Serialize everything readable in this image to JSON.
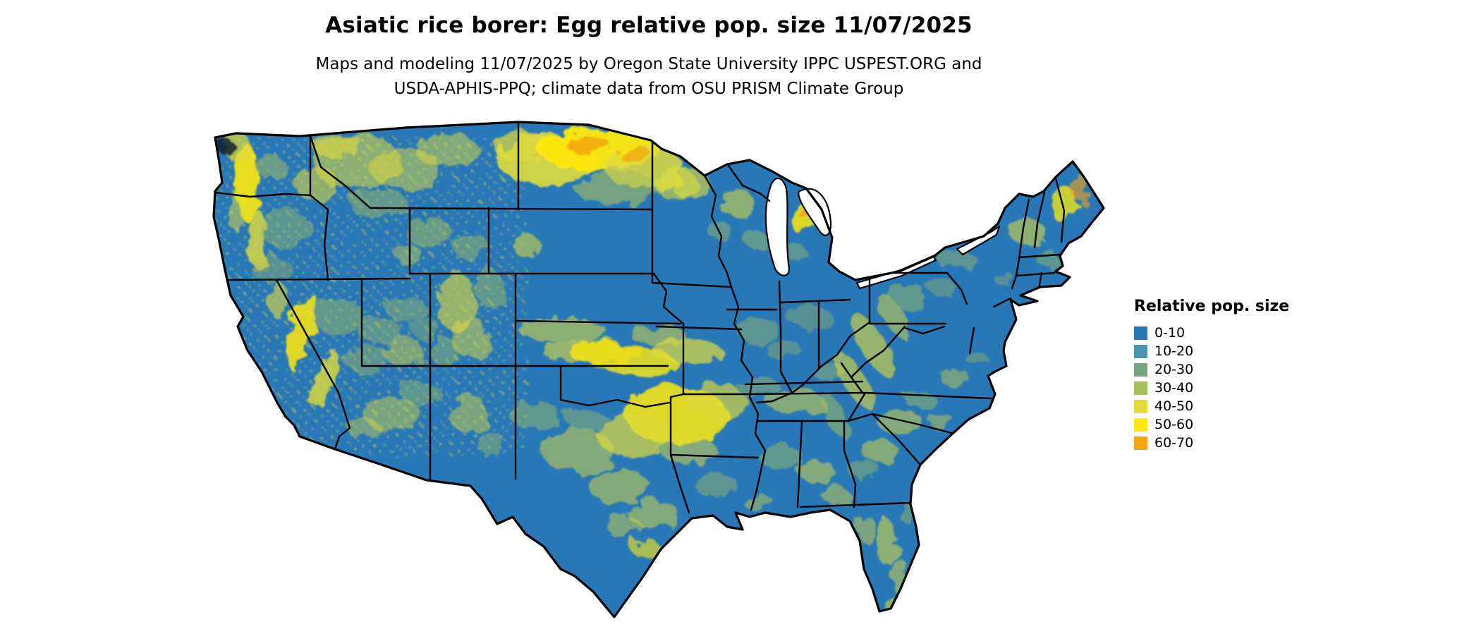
{
  "header": {
    "title": "Asiatic rice borer: Egg relative pop. size 11/07/2025",
    "subtitle_line1": "Maps and modeling 11/07/2025 by Oregon State University IPPC USPEST.ORG and",
    "subtitle_line2": "USDA-APHIS-PPQ; climate data from OSU PRISM Climate Group"
  },
  "map": {
    "region_label": "conus",
    "base_color": "#2878b8",
    "border_color": "#000000",
    "water_color": "#ffffff"
  },
  "legend": {
    "title": "Relative pop. size",
    "items": [
      {
        "label": "0-10",
        "color": "#2878b8"
      },
      {
        "label": "10-20",
        "color": "#4e94ae"
      },
      {
        "label": "20-30",
        "color": "#77a57f"
      },
      {
        "label": "30-40",
        "color": "#a9c05a"
      },
      {
        "label": "40-50",
        "color": "#e0dc3c"
      },
      {
        "label": "50-60",
        "color": "#fde90b"
      },
      {
        "label": "60-70",
        "color": "#f3a40e"
      }
    ]
  }
}
